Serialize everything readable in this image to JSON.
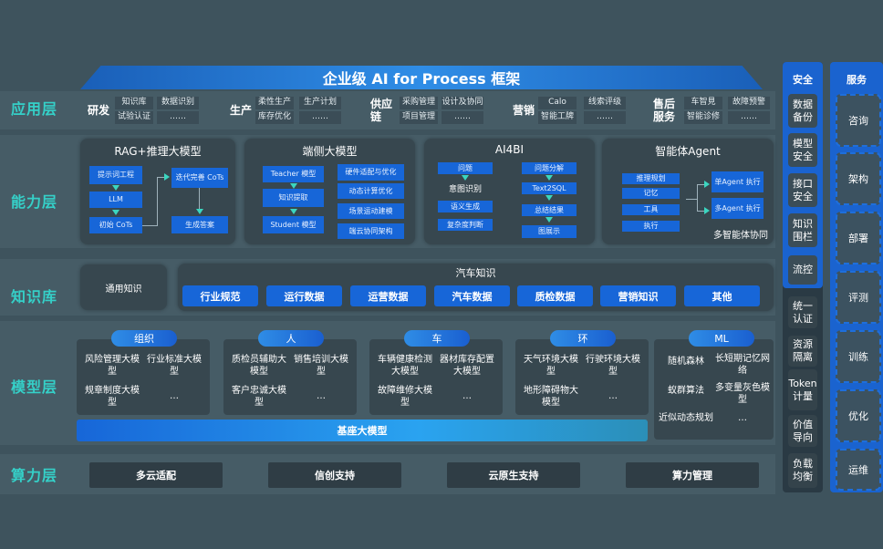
{
  "title": "企业级 AI for Process 框架",
  "layers": {
    "app": "应用层",
    "capability": "能力层",
    "knowledge": "知识库",
    "model": "模型层",
    "compute": "算力层"
  },
  "app_groups": [
    {
      "name": "研发",
      "items": [
        "知识库",
        "数据识别",
        "试验认证",
        "……"
      ]
    },
    {
      "name": "生产",
      "items": [
        "柔性生产",
        "生产计划",
        "库存优化",
        "……"
      ]
    },
    {
      "name": "供应链",
      "items": [
        "采购管理",
        "设计及协同",
        "项目管理",
        "……"
      ]
    },
    {
      "name": "营销",
      "items": [
        "Calo",
        "线索评级",
        "智能工牌",
        "……"
      ]
    },
    {
      "name": "售后服务",
      "items": [
        "车智見",
        "故障预警",
        "智能诊修",
        "……"
      ]
    }
  ],
  "capability": {
    "rag": {
      "title": "RAG+推理大模型",
      "items": [
        "提示词工程",
        "LLM",
        "初始 CoTs",
        "迭代完善 CoTs",
        "生成答案"
      ]
    },
    "edge": {
      "title": "端侧大模型",
      "items": [
        "Teacher 模型",
        "知识提取",
        "Student 模型",
        "硬件适配与优化",
        "动态计算优化",
        "场景运动建模",
        "端云协同架构"
      ]
    },
    "ai4bi": {
      "title": "AI4BI",
      "items": [
        "问题",
        "意图识别",
        "语义生成",
        "复杂度判断",
        "问题分解",
        "Text2SQL",
        "总结结果",
        "图展示"
      ]
    },
    "agent": {
      "title": "智能体Agent",
      "items": [
        "推理规划",
        "记忆",
        "工具",
        "执行",
        "单Agent 执行",
        "多Agent 执行"
      ],
      "footer": "多智能体协同"
    }
  },
  "knowledge": {
    "general": "通用知识",
    "auto_title": "汽车知识",
    "items": [
      "行业规范",
      "运行数据",
      "运营数据",
      "汽车数据",
      "质检数据",
      "营销知识",
      "其他"
    ]
  },
  "models": [
    {
      "tag": "组织",
      "items": [
        "风险管理大模型",
        "行业标准大模型",
        "规章制度大模型",
        "…"
      ]
    },
    {
      "tag": "人",
      "items": [
        "质检员辅助大模型",
        "销售培训大模型",
        "客户忠诚大模型",
        "…"
      ]
    },
    {
      "tag": "车",
      "items": [
        "车辆健康检测大模型",
        "器材库存配置大模型",
        "故障维修大模型",
        "…"
      ]
    },
    {
      "tag": "环",
      "items": [
        "天气环境大模型",
        "行驶环境大模型",
        "地形障碍物大模型",
        "…"
      ]
    },
    {
      "tag": "ML",
      "items": [
        "随机森林",
        "长短期记忆网络",
        "蚁群算法",
        "多变量灰色模型",
        "近似动态规划",
        "…"
      ]
    }
  ],
  "base_model": "基座大模型",
  "compute": [
    "多云适配",
    "信创支持",
    "云原生支持",
    "算力管理"
  ],
  "security": {
    "title": "安全",
    "items": [
      "数据备份",
      "模型安全",
      "接口安全",
      "知识围栏",
      "流控",
      "统一认证",
      "资源隔离",
      "Token计量",
      "价值导向",
      "负载均衡"
    ]
  },
  "service": {
    "title": "服务",
    "items": [
      "咨询",
      "架构",
      "部署",
      "评测",
      "训练",
      "优化",
      "运维"
    ]
  },
  "colors": {
    "accent": "#1766d8",
    "layer_label": "#35d0c8",
    "background": "#3e535d"
  }
}
